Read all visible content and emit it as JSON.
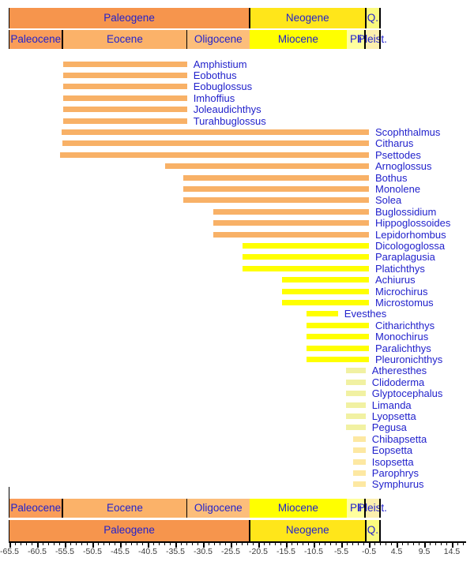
{
  "text_color": "#2222CC",
  "axis_text_color": "#3b3b3b",
  "chart_data": {
    "type": "bar",
    "variant": "stratigraphic_range_chart",
    "orientation": "horizontal",
    "unit": "Ma (millions of years before present, negative = past)",
    "x_axis": {
      "min": -65.5,
      "max": 16.5,
      "major_ticks": [
        -65.5,
        -60.5,
        -55.5,
        -50.5,
        -45.5,
        -40.5,
        -35.5,
        -30.5,
        -25.5,
        -20.5,
        -15.5,
        -10.5,
        -5.5,
        -0.5,
        4.5,
        9.5,
        14.5
      ],
      "minor_step": 1,
      "grid": false
    },
    "periods": [
      {
        "name": "Paleogene",
        "start": -65.6,
        "end": -22.1,
        "color": "#F6954D"
      },
      {
        "name": "Neogene",
        "start": -22.1,
        "end": -1.1,
        "color": "#FFE61A"
      },
      {
        "name": "Q.",
        "full_name": "Quaternary",
        "start": -1.1,
        "end": 1.5,
        "color": "#FAFA7E"
      }
    ],
    "period_separators": [
      -65.6,
      -22.1,
      -1.1,
      1.5
    ],
    "epochs": [
      {
        "name": "Paleocene",
        "start": -65.6,
        "end": -55.9,
        "color": "#FA9D59"
      },
      {
        "name": "Eocene",
        "start": -55.9,
        "end": -33.4,
        "color": "#FBB269"
      },
      {
        "name": "Oligocene",
        "start": -33.4,
        "end": -22.1,
        "color": "#FCBE7B"
      },
      {
        "name": "Miocene",
        "start": -22.1,
        "end": -4.5,
        "color": "#FFFF00"
      },
      {
        "name": "Pli",
        "full_name": "Pliocene",
        "start": -4.5,
        "end": -1.2,
        "color": "#FFFF9E"
      },
      {
        "name": "Pleist.",
        "full_name": "Pleistocene",
        "start": -1.2,
        "end": 1.5,
        "color": "#FCEFAE"
      }
    ],
    "epoch_separators": [
      -65.6,
      -55.9,
      -33.4,
      -1.2,
      1.5
    ],
    "bar_colors": {
      "orange": "#F8B167",
      "yellow": "#FFFF00",
      "pale_yellow": "#F1F1A2",
      "cream": "#FDE8A2"
    },
    "genera": [
      {
        "name": "Amphistium",
        "start": -55.8,
        "end": -33.4,
        "color": "#F8B167"
      },
      {
        "name": "Eobothus",
        "start": -55.8,
        "end": -33.4,
        "color": "#F8B167"
      },
      {
        "name": "Eobuglossus",
        "start": -55.8,
        "end": -33.4,
        "color": "#F8B167"
      },
      {
        "name": "Imhoffius",
        "start": -55.8,
        "end": -33.4,
        "color": "#F8B167"
      },
      {
        "name": "Joleaudichthys",
        "start": -55.8,
        "end": -33.4,
        "color": "#F8B167"
      },
      {
        "name": "Turahbuglossus",
        "start": -55.8,
        "end": -33.4,
        "color": "#F8B167"
      },
      {
        "name": "Scophthalmus",
        "start": -56.1,
        "end": -0.5,
        "color": "#F8B167"
      },
      {
        "name": "Citharus",
        "start": -56.0,
        "end": -0.5,
        "color": "#F8B167"
      },
      {
        "name": "Psettodes",
        "start": -56.4,
        "end": -0.5,
        "color": "#F8B167"
      },
      {
        "name": "Arnoglossus",
        "start": -37.3,
        "end": -0.5,
        "color": "#F8B167"
      },
      {
        "name": "Bothus",
        "start": -34.1,
        "end": -0.5,
        "color": "#F8B167"
      },
      {
        "name": "Monolene",
        "start": -34.1,
        "end": -0.5,
        "color": "#F8B167"
      },
      {
        "name": "Solea",
        "start": -34.1,
        "end": -0.5,
        "color": "#F8B167"
      },
      {
        "name": "Buglossidium",
        "start": -28.7,
        "end": -0.5,
        "color": "#F8B167"
      },
      {
        "name": "Hippoglossoides",
        "start": -28.7,
        "end": -0.5,
        "color": "#F8B167"
      },
      {
        "name": "Lepidorhombus",
        "start": -28.7,
        "end": -0.5,
        "color": "#F8B167"
      },
      {
        "name": "Dicologoglossa",
        "start": -23.4,
        "end": -0.5,
        "color": "#FFFF00"
      },
      {
        "name": "Paraplagusia",
        "start": -23.4,
        "end": -0.5,
        "color": "#FFFF00"
      },
      {
        "name": "Platichthys",
        "start": -23.4,
        "end": -0.5,
        "color": "#FFFF00"
      },
      {
        "name": "Achiurus",
        "start": -16.2,
        "end": -0.5,
        "color": "#FFFF00"
      },
      {
        "name": "Microchirus",
        "start": -16.2,
        "end": -0.5,
        "color": "#FFFF00"
      },
      {
        "name": "Microstomus",
        "start": -16.2,
        "end": -0.5,
        "color": "#FFFF00"
      },
      {
        "name": "Evesthes",
        "start": -11.8,
        "end": -6.1,
        "color": "#FFFF00"
      },
      {
        "name": "Citharichthys",
        "start": -11.8,
        "end": -0.5,
        "color": "#FFFF00"
      },
      {
        "name": "Monochirus",
        "start": -11.8,
        "end": -0.5,
        "color": "#FFFF00"
      },
      {
        "name": "Paralichthys",
        "start": -11.8,
        "end": -0.5,
        "color": "#FFFF00"
      },
      {
        "name": "Pleuronichthys",
        "start": -11.8,
        "end": -0.5,
        "color": "#FFFF00"
      },
      {
        "name": "Atheresthes",
        "start": -4.6,
        "end": -1.1,
        "color": "#F1F1A2"
      },
      {
        "name": "Clidoderma",
        "start": -4.6,
        "end": -1.1,
        "color": "#F1F1A2"
      },
      {
        "name": "Glyptocephalus",
        "start": -4.6,
        "end": -1.1,
        "color": "#F1F1A2"
      },
      {
        "name": "Limanda",
        "start": -4.6,
        "end": -1.1,
        "color": "#F1F1A2"
      },
      {
        "name": "Lyopsetta",
        "start": -4.6,
        "end": -1.1,
        "color": "#F1F1A2"
      },
      {
        "name": "Pegusa",
        "start": -4.6,
        "end": -1.1,
        "color": "#F1F1A2"
      },
      {
        "name": "Chibapsetta",
        "start": -3.4,
        "end": -1.1,
        "color": "#FDE8A2"
      },
      {
        "name": "Eopsetta",
        "start": -3.4,
        "end": -1.1,
        "color": "#FDE8A2"
      },
      {
        "name": "Isopsetta",
        "start": -3.4,
        "end": -1.1,
        "color": "#FDE8A2"
      },
      {
        "name": "Parophrys",
        "start": -3.4,
        "end": -1.1,
        "color": "#FDE8A2"
      },
      {
        "name": "Symphurus",
        "start": -3.4,
        "end": -1.1,
        "color": "#FDE8A2"
      }
    ]
  }
}
